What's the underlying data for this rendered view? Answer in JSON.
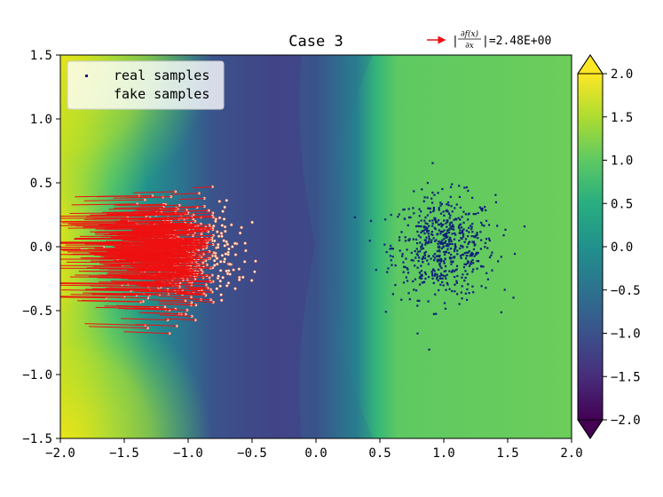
{
  "chart_data": {
    "type": "scatter",
    "title": "Case 3",
    "xlim": [
      -2.0,
      2.0
    ],
    "ylim": [
      -1.5,
      1.5
    ],
    "x_ticks": [
      "−2.0",
      "−1.5",
      "−1.0",
      "−0.5",
      "0.0",
      "0.5",
      "1.0",
      "1.5",
      "2.0"
    ],
    "y_ticks": [
      "−1.5",
      "−1.0",
      "−0.5",
      "0.0",
      "0.5",
      "1.0",
      "1.5"
    ],
    "x_tick_values": [
      -2.0,
      -1.5,
      -1.0,
      -0.5,
      0.0,
      0.5,
      1.0,
      1.5,
      2.0
    ],
    "y_tick_values": [
      -1.5,
      -1.0,
      -0.5,
      0.0,
      0.5,
      1.0,
      1.5
    ],
    "legend": {
      "placement": "top-left",
      "entries": [
        {
          "label": "real samples",
          "color": "#0d1f7a"
        },
        {
          "label": "fake samples",
          "color": "#fff0e6"
        }
      ]
    },
    "gradient_annotation": {
      "prefix": "|",
      "numerator": "∂f(x)",
      "denominator": "∂x",
      "value_text": "|=2.48E+00",
      "arrow_color": "#ee1111"
    },
    "colorbar": {
      "range": [
        -2.0,
        2.0
      ],
      "extend": "both",
      "colormap": "viridis",
      "ticks": [
        "2.0",
        "1.5",
        "1.0",
        "0.5",
        "0.0",
        "−0.5",
        "−1.0",
        "−1.5",
        "−2.0"
      ],
      "tick_values": [
        2.0,
        1.5,
        1.0,
        0.5,
        0.0,
        -0.5,
        -1.0,
        -1.5,
        -2.0
      ]
    },
    "grid": false,
    "series": [
      {
        "name": "real samples",
        "kind": "gaussian cluster",
        "center": [
          1.0,
          0.0
        ],
        "spread": 0.2,
        "count": 600,
        "color": "#0d1f7a"
      },
      {
        "name": "fake samples",
        "kind": "gaussian cluster",
        "center": [
          -1.05,
          -0.05
        ],
        "spread": 0.2,
        "count": 650,
        "color": "#fff0e6",
        "edge_color": "#cc4422"
      }
    ]
  }
}
